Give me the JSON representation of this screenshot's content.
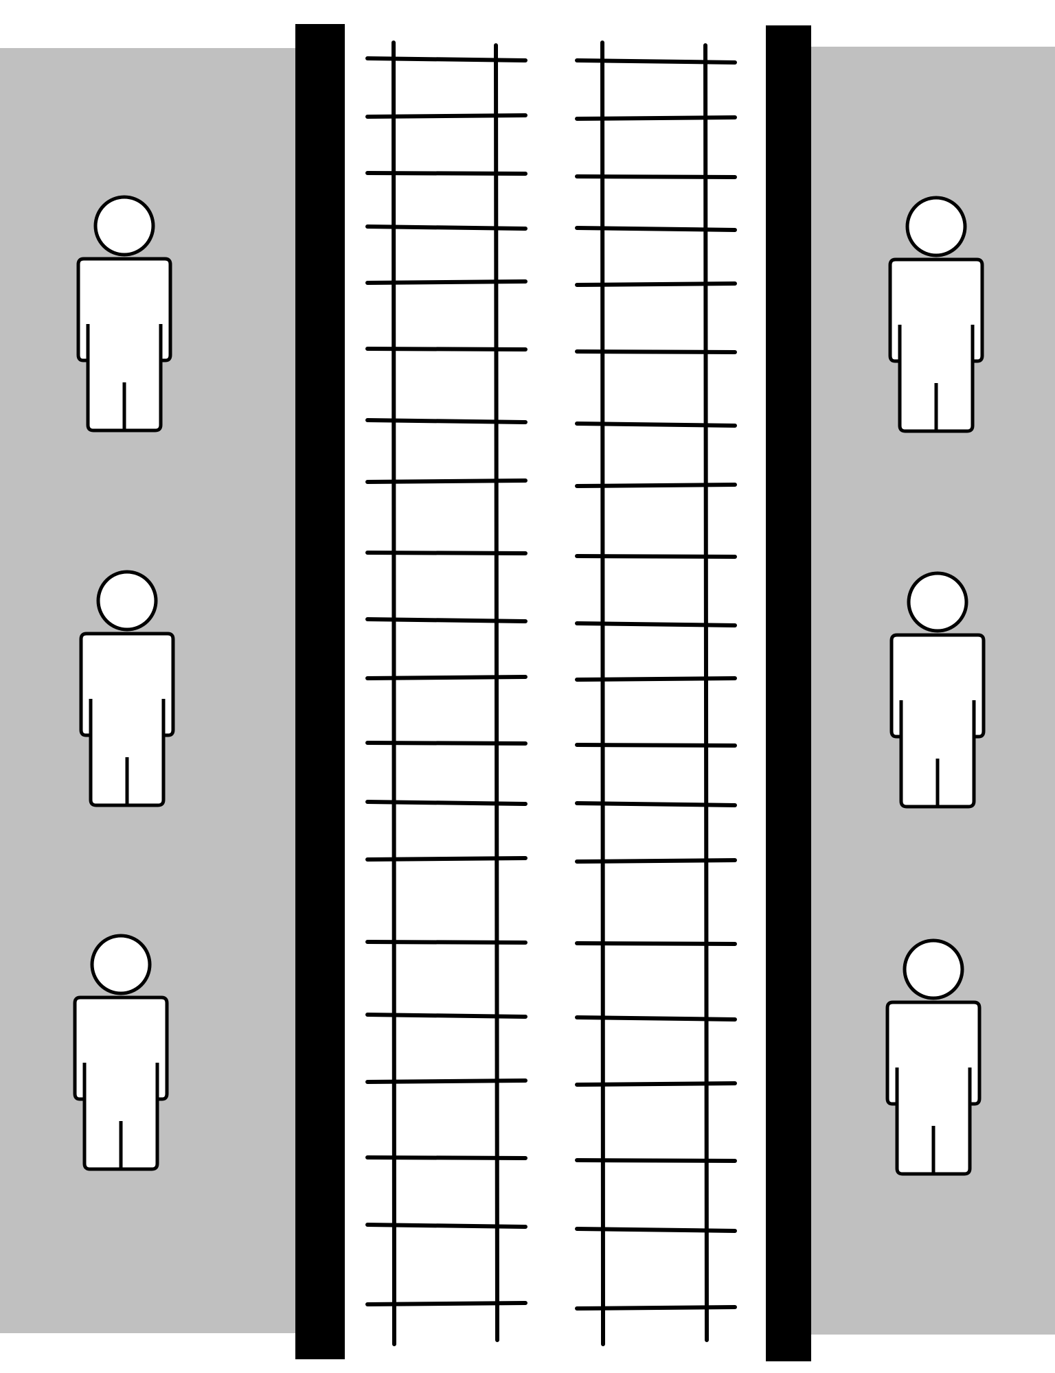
{
  "colors": {
    "background": "#ffffff",
    "platform": "#c0c0c0",
    "platform_edge": "#000000",
    "track": "#000000",
    "person_outline": "#000000",
    "person_fill": "#ffffff"
  },
  "scene": {
    "type": "railway-station-top-view",
    "platforms": [
      {
        "side": "left",
        "people_count": 3
      },
      {
        "side": "right",
        "people_count": 3
      }
    ],
    "tracks": [
      {
        "position": "left",
        "sleepers": 20
      },
      {
        "position": "right",
        "sleepers": 20
      }
    ],
    "person_icon": "person-icon"
  }
}
